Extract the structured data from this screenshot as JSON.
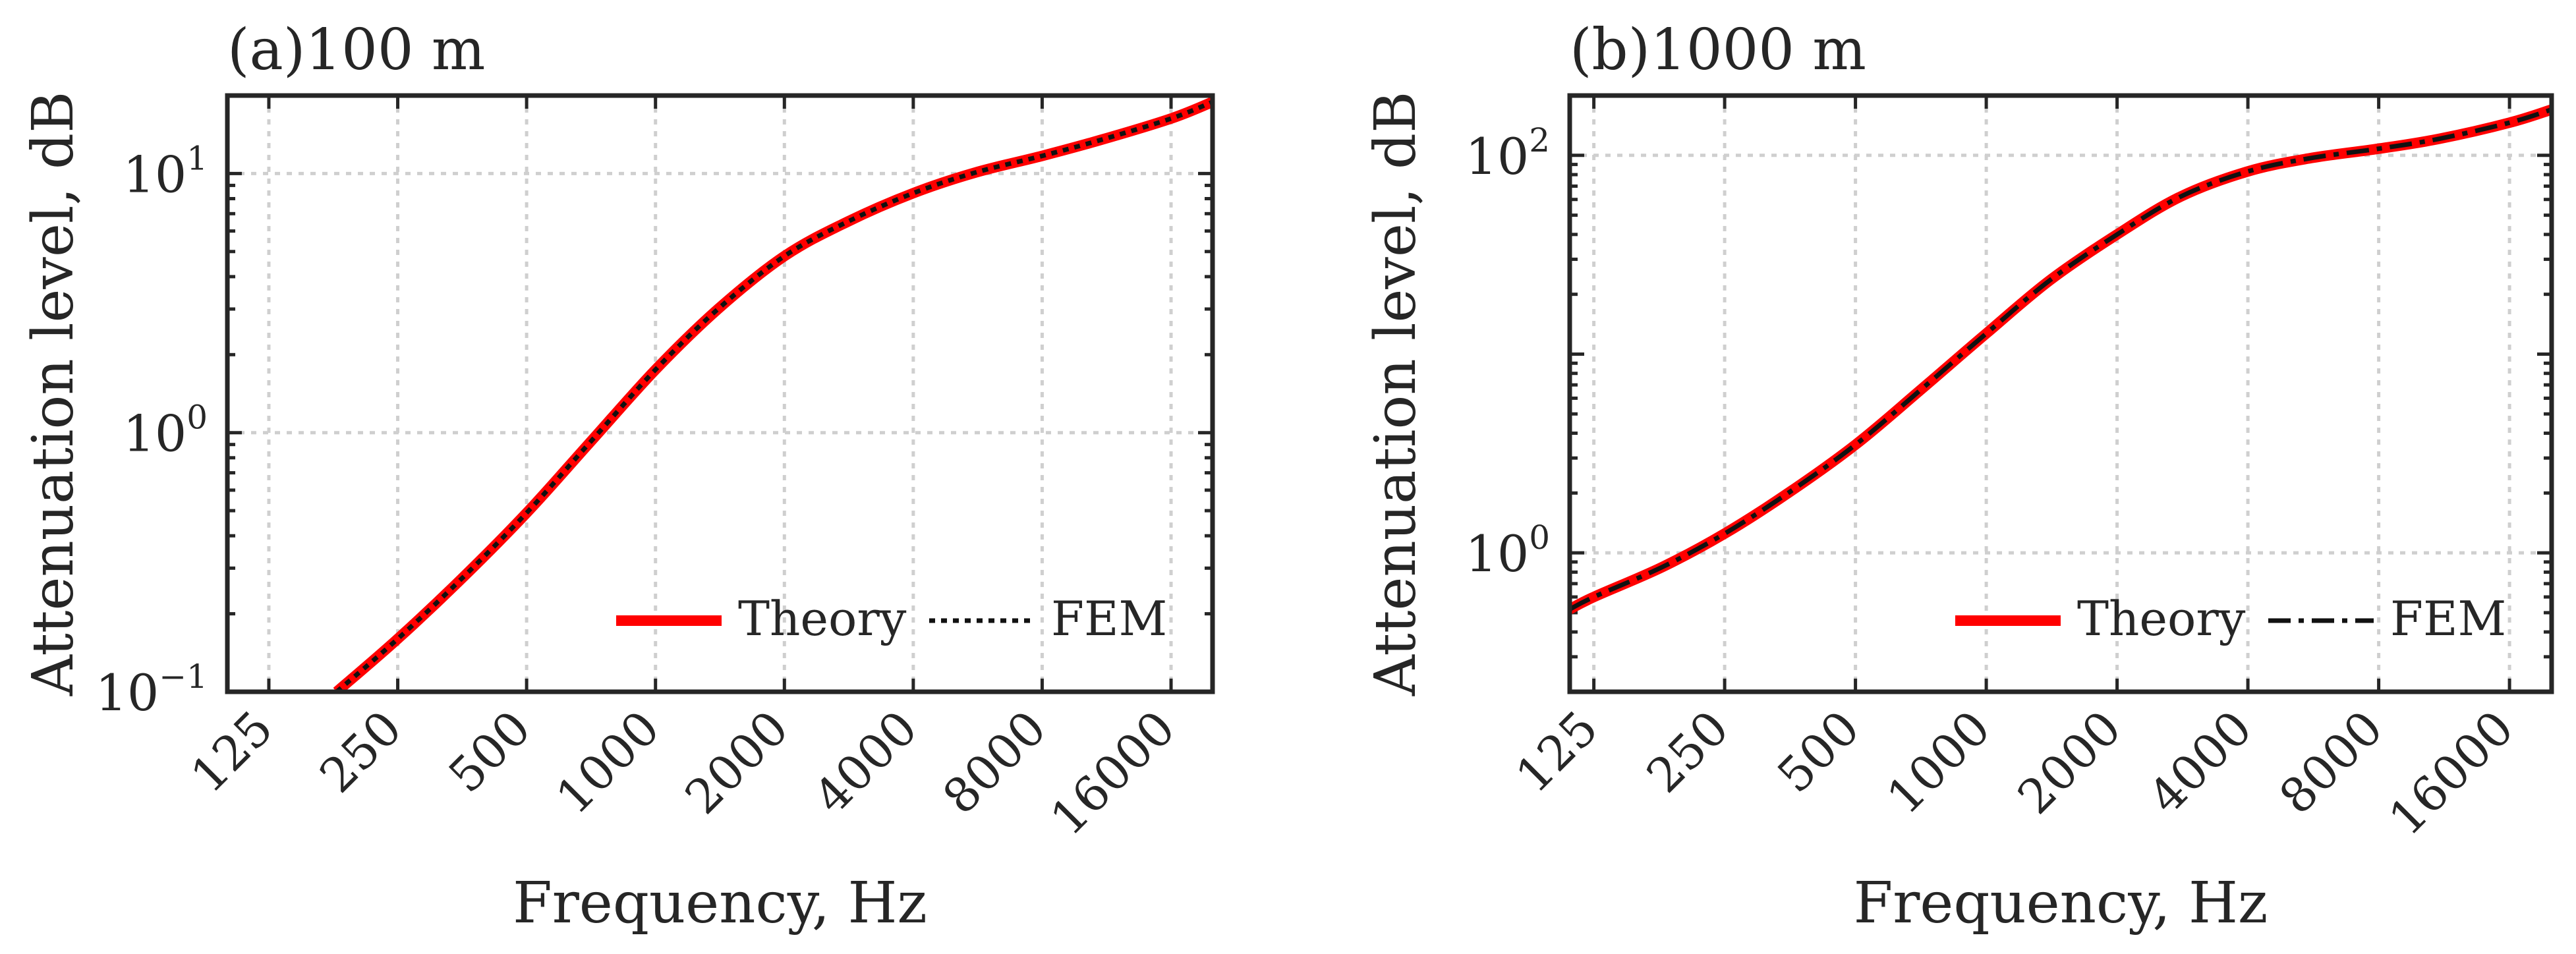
{
  "figure": {
    "colors": {
      "theory": "#ff0000",
      "fem": "#111111",
      "grid": "#cfcfcf",
      "axis": "#262626",
      "text": "#262626"
    }
  },
  "chart_data": [
    {
      "type": "line",
      "panel_label": "(a)",
      "title": "100 m",
      "xlabel": "Frequency, Hz",
      "ylabel": "Attenuation level, dB",
      "xscale": "log",
      "yscale": "log",
      "xlim": [
        100,
        20000
      ],
      "ylim": [
        0.1,
        20
      ],
      "xticks": [
        125,
        250,
        500,
        1000,
        2000,
        4000,
        8000,
        16000
      ],
      "xtick_labels": [
        "125",
        "250",
        "500",
        "1000",
        "2000",
        "4000",
        "8000",
        "16000"
      ],
      "yticks": [
        {
          "base": "10",
          "exp": "−1",
          "value": 0.1
        },
        {
          "base": "10",
          "exp": "0",
          "value": 1
        },
        {
          "base": "10",
          "exp": "1",
          "value": 10
        }
      ],
      "grid": true,
      "legend": {
        "location": "bottom-right",
        "orientation": "horizontal"
      },
      "series": [
        {
          "name": "Theory",
          "style": "solid",
          "color": "#ff0000",
          "x": [
            180,
            250,
            350,
            500,
            700,
            1000,
            1400,
            2000,
            2800,
            4000,
            5600,
            8000,
            11000,
            16000,
            20000
          ],
          "y": [
            0.1,
            0.16,
            0.27,
            0.49,
            0.91,
            1.75,
            3.0,
            4.8,
            6.5,
            8.4,
            10.1,
            11.7,
            13.5,
            16.3,
            18.9
          ]
        },
        {
          "name": "FEM",
          "style": "dotted",
          "color": "#111111",
          "x": [
            180,
            250,
            350,
            500,
            700,
            1000,
            1400,
            2000,
            2800,
            4000,
            5600,
            8000,
            11000,
            16000,
            20000
          ],
          "y": [
            0.1,
            0.16,
            0.27,
            0.49,
            0.91,
            1.75,
            3.0,
            4.8,
            6.5,
            8.4,
            10.1,
            11.7,
            13.5,
            16.3,
            18.9
          ]
        }
      ]
    },
    {
      "type": "line",
      "panel_label": "(b)",
      "title": "1000 m",
      "xlabel": "Frequency, Hz",
      "ylabel": "Attenuation level, dB",
      "xscale": "log",
      "yscale": "log",
      "xlim": [
        110,
        20000
      ],
      "ylim": [
        0.2,
        200
      ],
      "xticks": [
        125,
        250,
        500,
        1000,
        2000,
        4000,
        8000,
        16000
      ],
      "xtick_labels": [
        "125",
        "250",
        "500",
        "1000",
        "2000",
        "4000",
        "8000",
        "16000"
      ],
      "yticks": [
        {
          "base": "10",
          "exp": "0",
          "value": 1
        },
        {
          "base": "10",
          "exp": "2",
          "value": 100
        }
      ],
      "grid": true,
      "legend": {
        "location": "bottom-right",
        "orientation": "horizontal"
      },
      "series": [
        {
          "name": "Theory",
          "style": "solid",
          "color": "#ff0000",
          "x": [
            110,
            125,
            180,
            250,
            350,
            500,
            700,
            1000,
            1400,
            2000,
            2800,
            4000,
            5600,
            8000,
            11000,
            16000,
            20000
          ],
          "y": [
            0.52,
            0.6,
            0.85,
            1.25,
            2.0,
            3.5,
            6.5,
            12.7,
            23.5,
            40,
            62,
            83,
            97,
            108,
            121,
            146,
            170
          ]
        },
        {
          "name": "FEM",
          "style": "dashdot",
          "color": "#111111",
          "x": [
            110,
            125,
            180,
            250,
            350,
            500,
            700,
            1000,
            1400,
            2000,
            2800,
            4000,
            5600,
            8000,
            11000,
            16000,
            20000
          ],
          "y": [
            0.52,
            0.6,
            0.85,
            1.25,
            2.0,
            3.5,
            6.5,
            12.7,
            23.5,
            40,
            62,
            83,
            97,
            108,
            121,
            146,
            170
          ]
        }
      ]
    }
  ]
}
